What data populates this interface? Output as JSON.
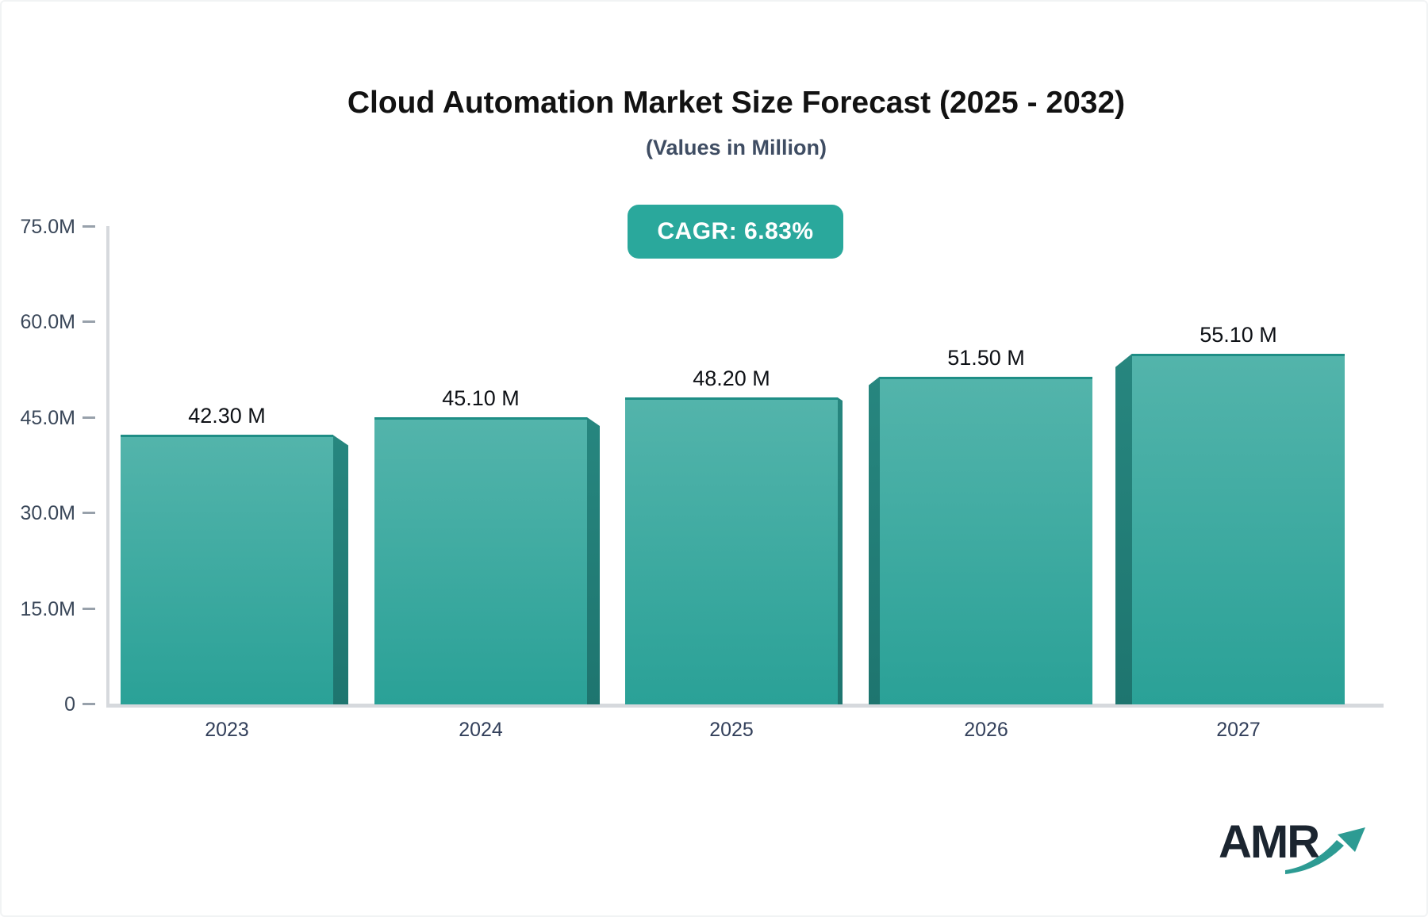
{
  "title": "Cloud Automation Market Size Forecast (2025 - 2032)",
  "subtitle": "(Values in Million)",
  "badge": {
    "label": "CAGR: 6.83%"
  },
  "logo": {
    "text": "AMR"
  },
  "colors": {
    "accent_teal": "#2aa89c",
    "bar_gradient_top": "#53b4ab",
    "bar_gradient_bottom": "#2aa197",
    "bar_top_stroke": "#1f8e86",
    "bar_3d_side": "#217d77",
    "axis_line_gray": "#d6d9dd",
    "tick_dash_gray": "#98a1ab",
    "axis_label_slate": "#3a4759",
    "value_label_black": "#0e1116",
    "badge_text_white": "#ffffff"
  },
  "chart_data": {
    "type": "bar",
    "title": "Cloud Automation Market Size Forecast (2025 - 2032)",
    "subtitle": "(Values in Million)",
    "annotation": "CAGR: 6.83%",
    "categories": [
      "2023",
      "2024",
      "2025",
      "2026",
      "2027"
    ],
    "values": [
      42.3,
      45.1,
      48.2,
      51.5,
      55.1
    ],
    "value_labels": [
      "42.30 M",
      "45.10 M",
      "48.20 M",
      "51.50 M",
      "55.10 M"
    ],
    "unit": "Million",
    "xlabel": "",
    "ylabel": "",
    "ylim": [
      0,
      75
    ],
    "grid": false,
    "legend": "none",
    "bar_style": "3d-extruded-teal",
    "y_ticks": [
      {
        "value": 0,
        "label": "0"
      },
      {
        "value": 15,
        "label": "15.0M"
      },
      {
        "value": 30,
        "label": "30.0M"
      },
      {
        "value": 45,
        "label": "45.0M"
      },
      {
        "value": 60,
        "label": "60.0M"
      },
      {
        "value": 75,
        "label": "75.0M"
      }
    ]
  }
}
